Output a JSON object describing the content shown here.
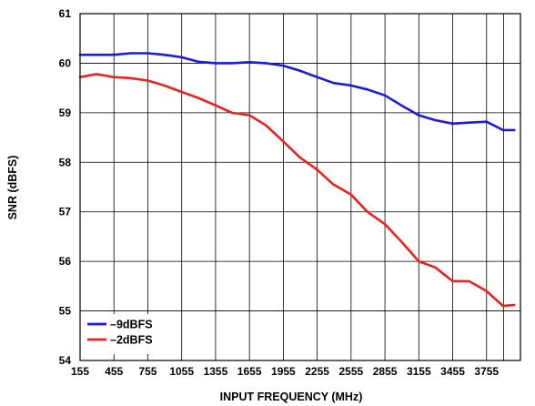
{
  "chart_data": {
    "type": "line",
    "title": "",
    "xlabel": "INPUT FREQUENCY (MHz)",
    "ylabel": "SNR (dBFS)",
    "xlim": [
      155,
      4055
    ],
    "ylim": [
      54,
      61
    ],
    "x_ticks": [
      155,
      455,
      755,
      1055,
      1355,
      1655,
      1955,
      2255,
      2555,
      2855,
      3155,
      3455,
      3755
    ],
    "x_tick_labels": [
      "155",
      "455",
      "755",
      "1055",
      "1355",
      "1655",
      "1955",
      "2255",
      "2555",
      "2855",
      "3155",
      "3455",
      "3755"
    ],
    "y_ticks": [
      54,
      55,
      56,
      57,
      58,
      59,
      60,
      61
    ],
    "y_tick_labels": [
      "54",
      "55",
      "56",
      "57",
      "58",
      "59",
      "60",
      "61"
    ],
    "grid": true,
    "legend_position": "bottom-left",
    "series": [
      {
        "name": "–9dBFS",
        "color": "#1a1adc",
        "x": [
          155,
          300,
          455,
          600,
          755,
          900,
          1055,
          1200,
          1355,
          1500,
          1655,
          1800,
          1955,
          2100,
          2255,
          2400,
          2555,
          2700,
          2855,
          3000,
          3155,
          3300,
          3455,
          3600,
          3755,
          3900,
          4000
        ],
        "values": [
          60.17,
          60.17,
          60.17,
          60.2,
          60.2,
          60.17,
          60.12,
          60.03,
          60.0,
          60.0,
          60.02,
          60.0,
          59.95,
          59.85,
          59.72,
          59.6,
          59.55,
          59.47,
          59.35,
          59.15,
          58.95,
          58.85,
          58.78,
          58.8,
          58.82,
          58.65,
          58.65
        ]
      },
      {
        "name": "–2dBFS",
        "color": "#e8231f",
        "x": [
          155,
          300,
          455,
          600,
          755,
          900,
          1055,
          1200,
          1355,
          1500,
          1655,
          1800,
          1955,
          2100,
          2255,
          2400,
          2555,
          2700,
          2855,
          3000,
          3155,
          3300,
          3455,
          3600,
          3755,
          3900,
          4000
        ],
        "values": [
          59.72,
          59.78,
          59.72,
          59.7,
          59.65,
          59.55,
          59.42,
          59.3,
          59.15,
          59.0,
          58.95,
          58.75,
          58.42,
          58.1,
          57.85,
          57.55,
          57.35,
          57.0,
          56.75,
          56.4,
          56.0,
          55.88,
          55.6,
          55.6,
          55.4,
          55.1,
          55.12
        ]
      }
    ]
  }
}
